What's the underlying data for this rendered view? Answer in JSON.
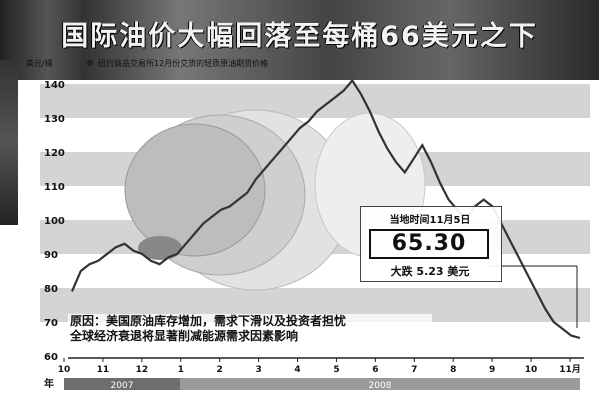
{
  "title": "国际油价大幅回落至每桶66美元之下",
  "unit_label": "美元/桶",
  "legend_label": "纽约商品交易所12月份交货的轻质原油期货价格",
  "caption_line1": "原因：美国原油库存增加，需求下滑以及投资者担忧",
  "caption_line2": "全球经济衰退将显著削减能源需求因素影响",
  "callout": {
    "date_label": "当地时间11月5日",
    "price": "65.30",
    "change": "大跌 5.23 美元"
  },
  "colors": {
    "band": "#d4d4d4",
    "line": "#333333",
    "year_bar_2007": "#6e6e6e",
    "year_bar_2008": "#9a9a9a"
  },
  "chart_data": {
    "type": "line",
    "ylim": [
      60,
      140
    ],
    "yticks": [
      60,
      70,
      80,
      90,
      100,
      110,
      120,
      130,
      140
    ],
    "xticks": [
      "10",
      "11",
      "12",
      "1",
      "2",
      "3",
      "4",
      "5",
      "6",
      "7",
      "8",
      "9",
      "10",
      "11月"
    ],
    "year_label": "年",
    "years": [
      "2007",
      "2008"
    ],
    "series": [
      {
        "values": [
          79,
          85,
          87,
          88,
          90,
          92,
          93,
          91,
          90,
          88,
          87,
          89,
          90,
          93,
          96,
          99,
          101,
          103,
          104,
          106,
          108,
          112,
          115,
          118,
          121,
          124,
          127,
          129,
          132,
          134,
          136,
          138,
          141,
          137,
          132,
          126,
          121,
          117,
          114,
          118,
          122,
          117,
          111,
          106,
          103,
          100,
          104,
          106,
          104,
          99,
          94,
          89,
          84,
          79,
          74,
          70,
          68,
          66,
          65.3
        ]
      }
    ]
  }
}
